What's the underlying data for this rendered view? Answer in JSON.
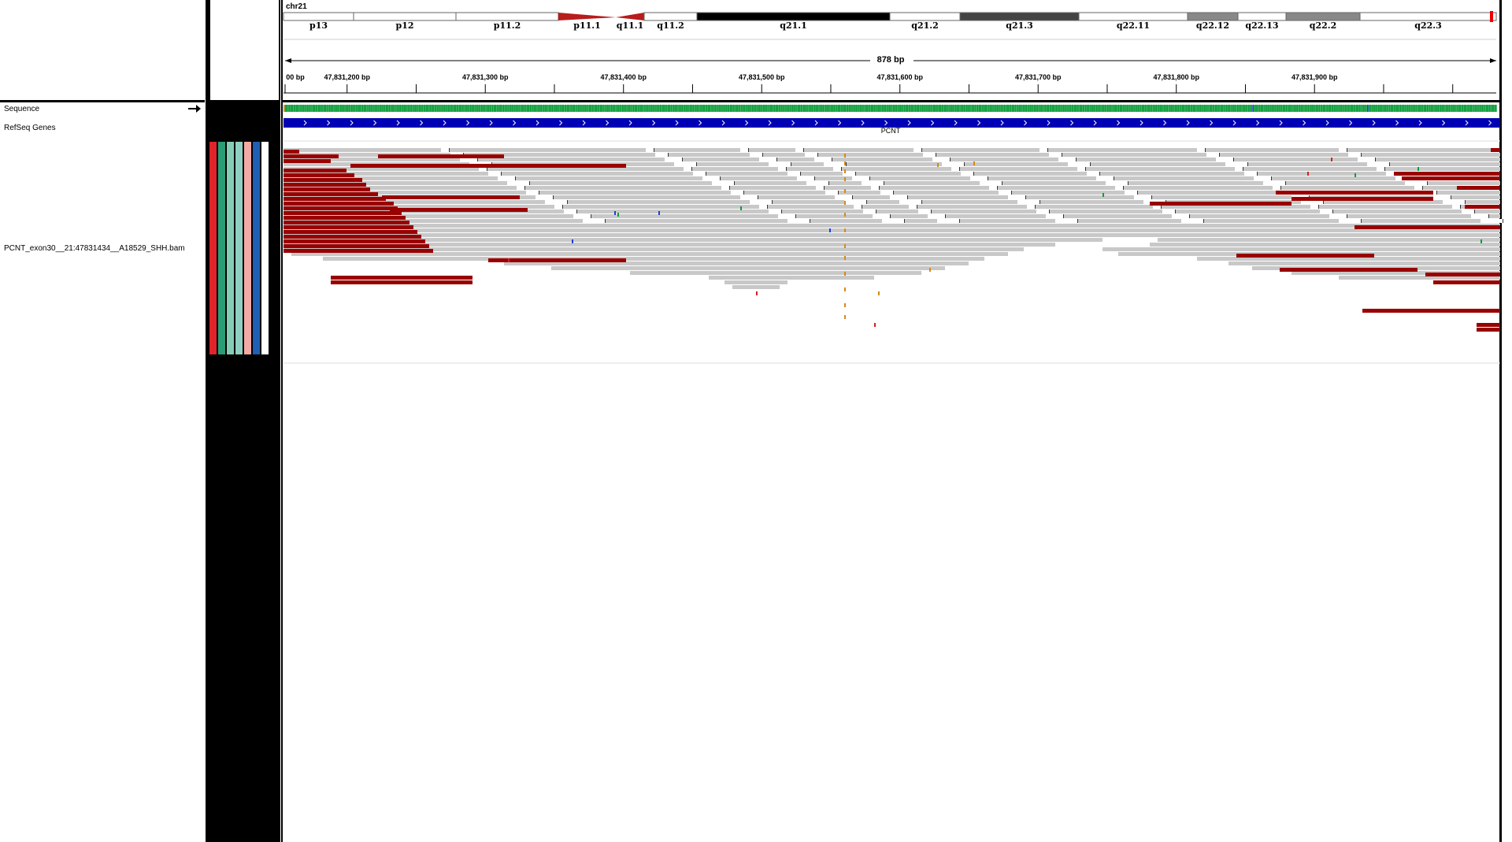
{
  "chromosome": "chr21",
  "cytobands": [
    "p13",
    "p12",
    "p11.2",
    "p11.1",
    "q11.1",
    "q11.2",
    "q21.1",
    "q21.2",
    "q21.3",
    "q22.11",
    "q22.12",
    "q22.13",
    "q22.2",
    "q22.3"
  ],
  "ruler": {
    "span_label": "878 bp",
    "tick_labels": [
      "00 bp",
      "47,831,200 bp",
      "47,831,300 bp",
      "47,831,400 bp",
      "47,831,500 bp",
      "47,831,600 bp",
      "47,831,700 bp",
      "47,831,800 bp",
      "47,831,900 bp"
    ]
  },
  "tracks": {
    "sequence": "Sequence",
    "refseq": "RefSeq Genes",
    "bam": "PCNT_exon30__21:47831434__A18529_SHH.bam"
  },
  "gene": {
    "name": "PCNT",
    "strand": "+"
  },
  "icons": {
    "strand_arrow": "arrow-right-icon"
  },
  "colors": {
    "read": "#c8c8c8",
    "soft_clip": "#990000",
    "gene": "#0000b4",
    "attr_columns": [
      "#e0242c",
      "#2a9d76",
      "#86cdb5",
      "#8fd0c0",
      "#f4aaa4",
      "#1f5fb4",
      "#ffffff"
    ]
  }
}
